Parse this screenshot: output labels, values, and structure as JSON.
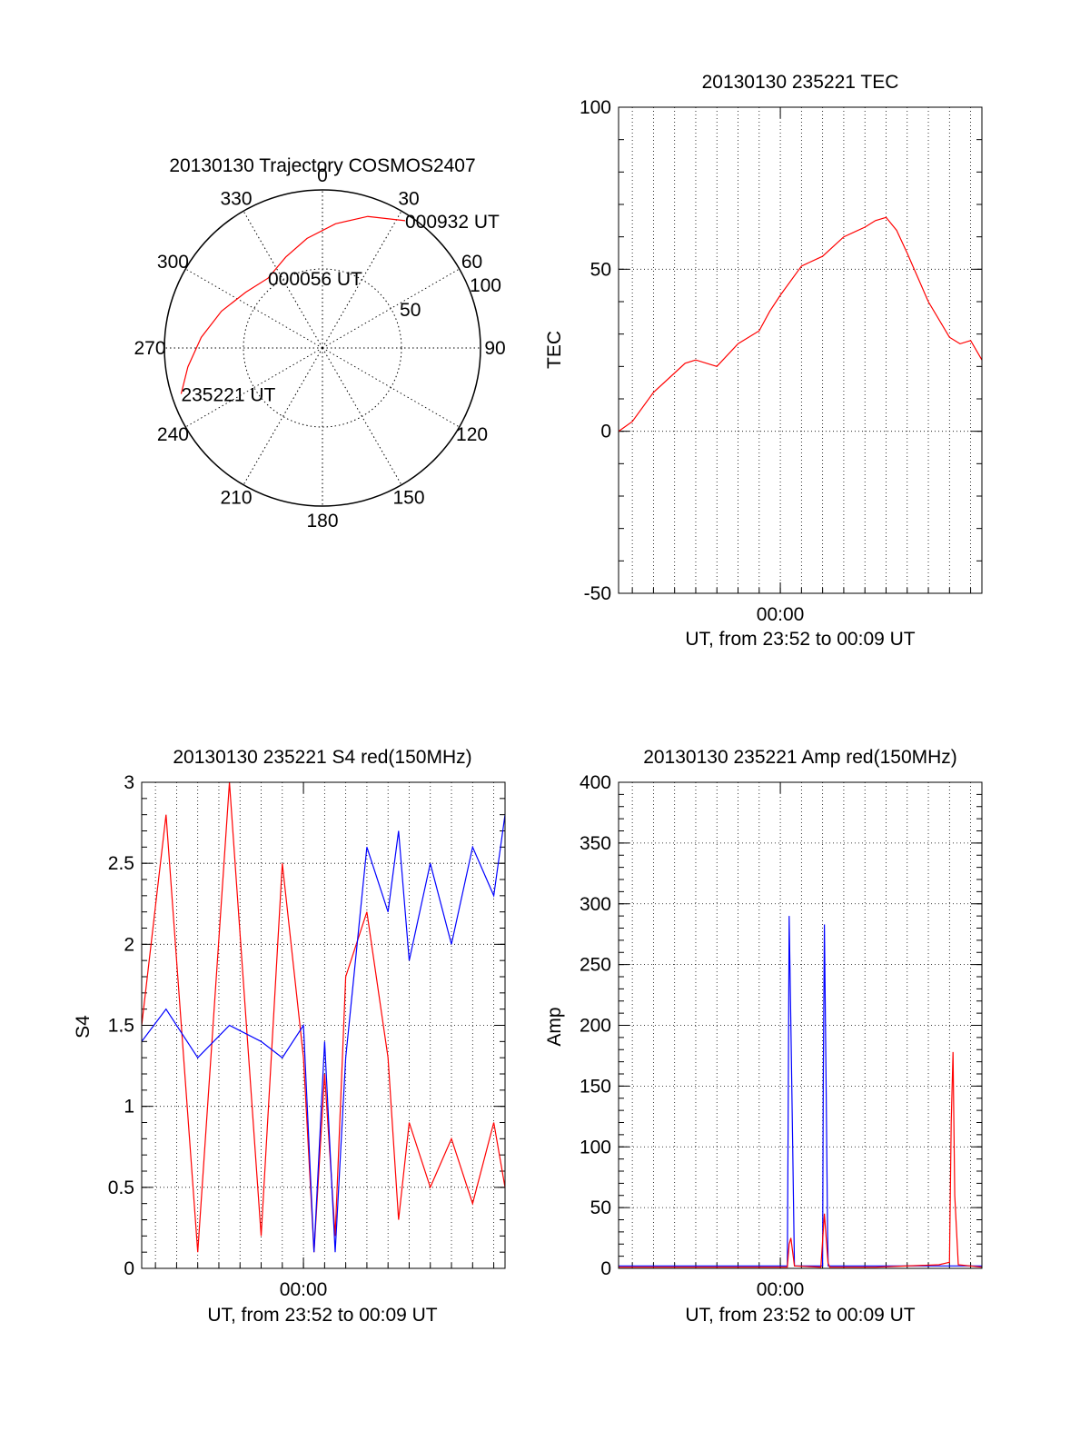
{
  "chart_data": [
    {
      "type": "polar",
      "title": "20130130 Trajectory COSMOS2407",
      "azimuth_labels": [
        "0",
        "30",
        "60",
        "90",
        "120",
        "150",
        "180",
        "210",
        "240",
        "270",
        "300",
        "330"
      ],
      "radial_labels": [
        "50",
        "100"
      ],
      "radial_max": 100,
      "grid": true,
      "trajectory_color": "#ff0000",
      "trajectory": [
        {
          "az": 252,
          "zen": 94
        },
        {
          "az": 262,
          "zen": 86
        },
        {
          "az": 275,
          "zen": 77
        },
        {
          "az": 290,
          "zen": 68
        },
        {
          "az": 306,
          "zen": 60
        },
        {
          "az": 322,
          "zen": 56
        },
        {
          "az": 338,
          "zen": 62
        },
        {
          "az": 352,
          "zen": 70
        },
        {
          "az": 6,
          "zen": 79
        },
        {
          "az": 19,
          "zen": 88
        },
        {
          "az": 33,
          "zen": 96
        }
      ],
      "annotations": [
        {
          "text": "235221 UT",
          "az": 252,
          "zen": 94
        },
        {
          "text": "000056 UT",
          "az": 322,
          "zen": 56
        },
        {
          "text": "000932 UT",
          "az": 33,
          "zen": 96
        }
      ]
    },
    {
      "type": "line",
      "title": "20130130 235221 TEC",
      "xlabel": "UT, from 23:52 to 00:09 UT",
      "ylabel": "TEC",
      "xlim": [
        "23:52:21",
        "00:09:32"
      ],
      "ylim": [
        -50,
        100
      ],
      "yticks": [
        -50,
        0,
        50,
        100
      ],
      "xticks": [
        "00:00"
      ],
      "grid": true,
      "series": [
        {
          "color": "#ff0000",
          "x": [
            "23:52:21",
            "23:53:00",
            "23:54:00",
            "23:55:00",
            "23:55:30",
            "23:56:00",
            "23:57:00",
            "23:58:00",
            "23:59:00",
            "23:59:30",
            "00:00:00",
            "00:01:00",
            "00:02:00",
            "00:03:00",
            "00:04:00",
            "00:04:30",
            "00:05:00",
            "00:05:30",
            "00:06:00",
            "00:07:00",
            "00:08:00",
            "00:08:30",
            "00:09:00",
            "00:09:32"
          ],
          "y": [
            0,
            3,
            12,
            18,
            21,
            22,
            20,
            27,
            31,
            37,
            42,
            51,
            54,
            60,
            63,
            65,
            66,
            62,
            55,
            40,
            29,
            27,
            28,
            22
          ]
        }
      ]
    },
    {
      "type": "line",
      "title": "20130130 235221 S4 red(150MHz)",
      "xlabel": "UT, from 23:52 to 00:09 UT",
      "ylabel": "S4",
      "xlim": [
        "23:52:21",
        "00:09:32"
      ],
      "ylim": [
        0,
        3
      ],
      "yticks": [
        0,
        0.5,
        1,
        1.5,
        2,
        2.5,
        3
      ],
      "xticks": [
        "00:00"
      ],
      "grid": true,
      "series": [
        {
          "color": "#ff0000",
          "x": [
            "23:52:21",
            "23:53:30",
            "23:55:00",
            "23:56:30",
            "23:58:00",
            "23:59:00",
            "00:00:00",
            "00:00:30",
            "00:01:00",
            "00:01:30",
            "00:02:00",
            "00:03:00",
            "00:04:00",
            "00:04:30",
            "00:05:00",
            "00:06:00",
            "00:07:00",
            "00:08:00",
            "00:09:00",
            "00:09:32"
          ],
          "y": [
            1.5,
            2.8,
            0.1,
            3.0,
            0.2,
            2.5,
            1.3,
            0.1,
            1.2,
            0.2,
            1.8,
            2.2,
            1.3,
            0.3,
            0.9,
            0.5,
            0.8,
            0.4,
            0.9,
            0.5
          ]
        },
        {
          "color": "#0000ff",
          "x": [
            "23:52:21",
            "23:53:30",
            "23:55:00",
            "23:56:30",
            "23:58:00",
            "23:59:00",
            "00:00:00",
            "00:00:30",
            "00:01:00",
            "00:01:30",
            "00:02:00",
            "00:03:00",
            "00:04:00",
            "00:04:30",
            "00:05:00",
            "00:06:00",
            "00:07:00",
            "00:08:00",
            "00:09:00",
            "00:09:32"
          ],
          "y": [
            1.4,
            1.6,
            1.3,
            1.5,
            1.4,
            1.3,
            1.5,
            0.1,
            1.4,
            0.1,
            1.3,
            2.6,
            2.2,
            2.7,
            1.9,
            2.5,
            2.0,
            2.6,
            2.3,
            2.8
          ]
        }
      ]
    },
    {
      "type": "line",
      "title": "20130130 235221 Amp red(150MHz)",
      "xlabel": "UT, from 23:52 to 00:09 UT",
      "ylabel": "Amp",
      "xlim": [
        "23:52:21",
        "00:09:32"
      ],
      "ylim": [
        0,
        400
      ],
      "yticks": [
        0,
        50,
        100,
        150,
        200,
        250,
        300,
        350,
        400
      ],
      "xticks": [
        "00:00"
      ],
      "grid": true,
      "series": [
        {
          "color": "#0000ff",
          "x": [
            "23:52:21",
            "00:00:20",
            "00:00:22",
            "00:00:25",
            "00:00:30",
            "00:00:35",
            "00:00:40",
            "00:02:00",
            "00:02:02",
            "00:02:05",
            "00:02:10",
            "00:02:14",
            "00:02:16",
            "00:09:32"
          ],
          "y": [
            2,
            2,
            110,
            290,
            200,
            100,
            2,
            2,
            160,
            283,
            150,
            30,
            2,
            2
          ]
        },
        {
          "color": "#ff0000",
          "x": [
            "23:52:21",
            "00:00:20",
            "00:00:25",
            "00:00:30",
            "00:00:40",
            "00:01:55",
            "00:02:05",
            "00:02:15",
            "00:02:20",
            "00:04:30",
            "00:07:30",
            "00:08:00",
            "00:08:05",
            "00:08:10",
            "00:08:15",
            "00:08:25",
            "00:09:32"
          ],
          "y": [
            1,
            1,
            20,
            25,
            2,
            1,
            45,
            5,
            1,
            1,
            3,
            5,
            120,
            178,
            60,
            3,
            1
          ]
        }
      ]
    }
  ]
}
